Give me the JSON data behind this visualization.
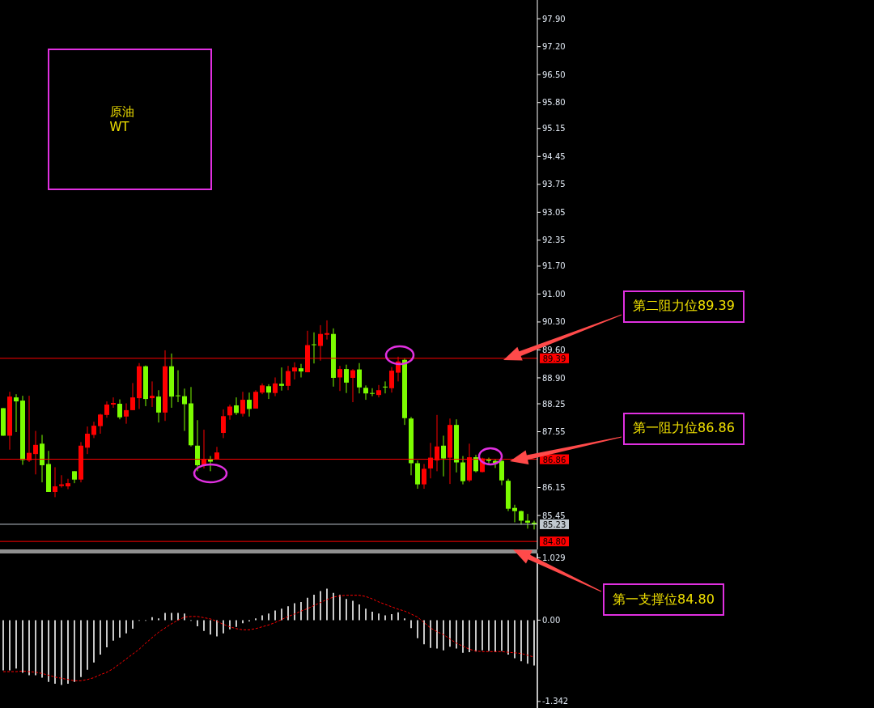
{
  "chart_data": [
    {
      "type": "candlestick",
      "title": "原油\nWT",
      "categories": [
        null,
        null,
        null,
        null,
        null,
        null,
        null,
        null,
        null,
        null,
        null,
        null,
        null,
        null,
        null,
        null,
        null,
        null,
        null,
        null,
        null,
        null,
        null,
        null,
        null,
        null,
        null,
        null,
        null,
        null,
        null,
        null,
        null,
        null,
        null,
        null,
        null,
        null,
        null,
        null,
        null,
        null,
        null,
        null,
        null,
        null,
        null,
        null,
        null,
        null,
        null,
        null,
        null,
        null,
        null,
        null,
        null,
        null,
        null,
        null,
        null,
        null,
        null,
        null,
        null,
        null,
        null,
        null,
        null,
        null,
        null,
        null,
        null,
        null,
        null,
        null,
        null,
        null,
        null,
        null,
        null,
        null,
        null
      ],
      "ohlc": [
        [
          88.14,
          88.14,
          87.45,
          87.45
        ],
        [
          87.45,
          88.55,
          87.1,
          88.43
        ],
        [
          88.41,
          88.49,
          87.54,
          88.31
        ],
        [
          88.33,
          88.45,
          86.72,
          86.84
        ],
        [
          86.83,
          88.45,
          86.79,
          87.02
        ],
        [
          86.99,
          87.57,
          86.48,
          87.22
        ],
        [
          87.25,
          87.47,
          86.28,
          86.71
        ],
        [
          86.74,
          87.07,
          86.04,
          86.04
        ],
        [
          86.04,
          86.66,
          85.91,
          86.18
        ],
        [
          86.19,
          86.46,
          86.15,
          86.23
        ],
        [
          86.18,
          86.37,
          86.11,
          86.26
        ],
        [
          86.56,
          86.56,
          86.26,
          86.35
        ],
        [
          86.35,
          87.29,
          86.28,
          87.2
        ],
        [
          87.15,
          87.68,
          86.99,
          87.5
        ],
        [
          87.47,
          87.8,
          87.39,
          87.7
        ],
        [
          87.69,
          88.0,
          87.5,
          87.98
        ],
        [
          87.97,
          88.31,
          87.9,
          88.23
        ],
        [
          88.23,
          88.41,
          88.15,
          88.27
        ],
        [
          88.25,
          88.36,
          87.86,
          87.91
        ],
        [
          87.93,
          88.26,
          87.75,
          88.09
        ],
        [
          88.09,
          88.77,
          88.09,
          88.41
        ],
        [
          88.39,
          89.27,
          88.12,
          89.19
        ],
        [
          89.19,
          89.21,
          88.19,
          88.37
        ],
        [
          88.39,
          88.81,
          88.17,
          88.45
        ],
        [
          88.43,
          88.59,
          87.78,
          88.03
        ],
        [
          88.03,
          89.59,
          87.82,
          89.19
        ],
        [
          89.19,
          89.51,
          88.15,
          88.43
        ],
        [
          88.46,
          89.09,
          88.29,
          88.45
        ],
        [
          88.44,
          88.63,
          87.57,
          88.24
        ],
        [
          88.26,
          88.67,
          87.18,
          87.21
        ],
        [
          87.2,
          87.84,
          86.56,
          86.71
        ],
        [
          86.71,
          87.6,
          86.63,
          86.86
        ],
        [
          86.86,
          86.94,
          86.56,
          86.8
        ],
        [
          86.85,
          87.17,
          86.85,
          87.03
        ],
        [
          87.52,
          88.11,
          87.39,
          87.94
        ],
        [
          87.96,
          88.23,
          87.85,
          88.18
        ],
        [
          88.21,
          88.41,
          87.97,
          88.02
        ],
        [
          88.0,
          88.55,
          87.93,
          88.35
        ],
        [
          88.35,
          88.53,
          87.93,
          88.12
        ],
        [
          88.13,
          88.59,
          88.13,
          88.55
        ],
        [
          88.53,
          88.76,
          88.49,
          88.71
        ],
        [
          88.69,
          88.74,
          88.37,
          88.53
        ],
        [
          88.52,
          88.91,
          88.44,
          88.76
        ],
        [
          88.75,
          89.16,
          88.58,
          88.7
        ],
        [
          88.7,
          89.2,
          88.59,
          89.07
        ],
        [
          89.06,
          89.29,
          88.86,
          89.16
        ],
        [
          89.14,
          89.25,
          88.91,
          89.06
        ],
        [
          89.04,
          90.08,
          89.04,
          89.72
        ],
        [
          89.74,
          90.04,
          89.26,
          89.73
        ],
        [
          89.7,
          90.22,
          89.33,
          90.0
        ],
        [
          89.98,
          90.34,
          89.86,
          90.02
        ],
        [
          90.0,
          90.14,
          88.68,
          88.9
        ],
        [
          88.91,
          89.2,
          88.57,
          89.12
        ],
        [
          89.12,
          89.23,
          88.52,
          88.78
        ],
        [
          88.9,
          89.12,
          88.29,
          89.09
        ],
        [
          89.11,
          89.27,
          88.51,
          88.66
        ],
        [
          88.65,
          88.71,
          88.35,
          88.51
        ],
        [
          88.52,
          88.64,
          88.44,
          88.51
        ],
        [
          88.47,
          88.72,
          88.41,
          88.59
        ],
        [
          88.68,
          88.81,
          88.51,
          88.67
        ],
        [
          88.64,
          89.17,
          88.53,
          89.08
        ],
        [
          89.03,
          89.43,
          88.81,
          89.31
        ],
        [
          89.35,
          89.39,
          87.72,
          87.89
        ],
        [
          87.88,
          87.92,
          86.46,
          86.76
        ],
        [
          86.76,
          86.83,
          86.12,
          86.23
        ],
        [
          86.23,
          86.74,
          86.12,
          86.62
        ],
        [
          86.63,
          87.27,
          86.38,
          86.9
        ],
        [
          86.83,
          87.97,
          86.56,
          87.18
        ],
        [
          87.2,
          87.45,
          86.43,
          86.88
        ],
        [
          86.9,
          87.88,
          86.24,
          87.72
        ],
        [
          87.72,
          87.86,
          86.53,
          86.78
        ],
        [
          86.78,
          86.94,
          86.23,
          86.31
        ],
        [
          86.33,
          87.25,
          86.29,
          86.91
        ],
        [
          86.91,
          86.97,
          86.53,
          86.56
        ],
        [
          86.54,
          86.9,
          86.53,
          86.88
        ],
        [
          86.86,
          86.9,
          86.75,
          86.82
        ],
        [
          86.82,
          86.86,
          86.64,
          86.76
        ],
        [
          86.82,
          86.86,
          86.21,
          86.33
        ],
        [
          86.32,
          86.37,
          85.56,
          85.62
        ],
        [
          85.64,
          85.72,
          85.28,
          85.56
        ],
        [
          85.56,
          85.57,
          85.22,
          85.32
        ],
        [
          85.32,
          85.49,
          85.12,
          85.27
        ],
        [
          85.27,
          85.32,
          85.1,
          85.23
        ]
      ],
      "colors": [
        "#7cfc00",
        "#ff0000",
        "#7cfc00",
        "#7cfc00",
        "#ff0000",
        "#ff0000",
        "#7cfc00",
        "#7cfc00",
        "#ff0000",
        "#ff0000",
        "#ff0000",
        "#7cfc00",
        "#ff0000",
        "#ff0000",
        "#ff0000",
        "#ff0000",
        "#ff0000",
        "#ff0000",
        "#7cfc00",
        "#ff0000",
        "#ff0000",
        "#ff0000",
        "#7cfc00",
        "#ff0000",
        "#7cfc00",
        "#ff0000",
        "#7cfc00",
        "#7cfc00",
        "#7cfc00",
        "#7cfc00",
        "#7cfc00",
        "#ff0000",
        "#7cfc00",
        "#ff0000",
        "#ff0000",
        "#ff0000",
        "#7cfc00",
        "#ff0000",
        "#7cfc00",
        "#ff0000",
        "#ff0000",
        "#7cfc00",
        "#ff0000",
        "#7cfc00",
        "#ff0000",
        "#ff0000",
        "#7cfc00",
        "#ff0000",
        "#7cfc00",
        "#ff0000",
        "#ff0000",
        "#7cfc00",
        "#ff0000",
        "#7cfc00",
        "#ff0000",
        "#7cfc00",
        "#7cfc00",
        "#7cfc00",
        "#ff0000",
        "#7cfc00",
        "#ff0000",
        "#ff0000",
        "#7cfc00",
        "#7cfc00",
        "#7cfc00",
        "#ff0000",
        "#ff0000",
        "#ff0000",
        "#7cfc00",
        "#ff0000",
        "#7cfc00",
        "#7cfc00",
        "#ff0000",
        "#7cfc00",
        "#ff0000",
        "#7cfc00",
        "#7cfc00",
        "#7cfc00",
        "#7cfc00",
        "#7cfc00",
        "#7cfc00",
        "#7cfc00",
        "#7cfc00"
      ],
      "ylim": [
        84.6,
        98.37
      ],
      "yticks": [
        85.45,
        86.15,
        87.55,
        88.25,
        {
          "value": 88.9,
          "label": "88.90"
        },
        {
          "value": 89.6,
          "label": "89.60"
        },
        {
          "value": 90.3,
          "label": "90.30"
        },
        {
          "value": 91,
          "label": "91.00"
        },
        {
          "value": 91.7,
          "label": "91.70"
        },
        92.35,
        93.05,
        93.75,
        94.45,
        95.15,
        {
          "value": 95.8,
          "label": "95.80"
        },
        {
          "value": 96.5,
          "label": "96.50"
        },
        {
          "value": 97.2,
          "label": "97.20"
        },
        {
          "value": 97.9,
          "label": "97.90"
        }
      ],
      "ref_lines": [
        {
          "axis": "y",
          "value": 89.39,
          "label": "89.39",
          "color": "#ff0000"
        },
        {
          "axis": "y",
          "value": 86.86,
          "label": "86.86",
          "color": "#ff0000"
        },
        {
          "axis": "y",
          "value": 85.23,
          "label": "85.23",
          "color": "#c0c8d0"
        },
        {
          "axis": "y",
          "value": 84.8,
          "label": "84.80",
          "color": "#ff0000"
        }
      ],
      "annotations": [
        "第二阻力位89.39",
        "第一阻力位86.86",
        "第一支撑位84.80"
      ],
      "grid": false,
      "tick_labels": "y"
    },
    {
      "type": "bar",
      "categories": [
        null,
        null,
        null,
        null,
        null,
        null,
        null,
        null,
        null,
        null,
        null,
        null,
        null,
        null,
        null,
        null,
        null,
        null,
        null,
        null,
        null,
        null,
        null,
        null,
        null,
        null,
        null,
        null,
        null,
        null,
        null,
        null,
        null,
        null,
        null,
        null,
        null,
        null,
        null,
        null,
        null,
        null,
        null,
        null,
        null,
        null,
        null,
        null,
        null,
        null,
        null,
        null,
        null,
        null,
        null,
        null,
        null,
        null,
        null,
        null,
        null,
        null,
        null,
        null,
        null,
        null,
        null,
        null,
        null,
        null,
        null,
        null,
        null,
        null,
        null,
        null,
        null,
        null,
        null,
        null,
        null,
        null,
        null
      ],
      "series": [
        {
          "type": "bar",
          "color": "#c8c8c8",
          "values": [
            -0.83,
            -0.83,
            -0.8,
            -0.87,
            -0.91,
            -0.91,
            -0.95,
            -1.02,
            -1.05,
            -1.07,
            -1.05,
            -1.02,
            -0.94,
            -0.82,
            -0.7,
            -0.57,
            -0.45,
            -0.34,
            -0.29,
            -0.22,
            -0.14,
            -0.01,
            -0.01,
            0.05,
            0.03,
            0.12,
            0.12,
            0.12,
            0.11,
            -0.01,
            -0.1,
            -0.18,
            -0.24,
            -0.27,
            -0.22,
            -0.15,
            -0.11,
            -0.05,
            -0.02,
            0.03,
            0.08,
            0.11,
            0.16,
            0.19,
            0.23,
            0.28,
            0.3,
            0.37,
            0.42,
            0.48,
            0.52,
            0.45,
            0.42,
            0.35,
            0.32,
            0.26,
            0.19,
            0.14,
            0.11,
            0.08,
            0.1,
            0.13,
            0.03,
            -0.13,
            -0.3,
            -0.4,
            -0.46,
            -0.47,
            -0.5,
            -0.44,
            -0.47,
            -0.54,
            -0.53,
            -0.52,
            -0.5,
            -0.51,
            -0.53,
            -0.51,
            -0.57,
            -0.63,
            -0.68,
            -0.72,
            -0.75
          ]
        }
      ],
      "ylim": [
        -1.45,
        1.1
      ],
      "yticks": [
        1.029,
        {
          "value": 0,
          "label": "0.00"
        },
        -1.342
      ],
      "grid": false,
      "tick_labels": "y"
    },
    {
      "type": "line",
      "categories": [
        null,
        null,
        null,
        null,
        null,
        null,
        null,
        null,
        null,
        null,
        null,
        null,
        null,
        null,
        null,
        null,
        null,
        null,
        null,
        null,
        null,
        null,
        null,
        null,
        null,
        null,
        null,
        null,
        null,
        null,
        null,
        null,
        null,
        null,
        null,
        null,
        null,
        null,
        null,
        null,
        null,
        null,
        null,
        null,
        null,
        null,
        null,
        null,
        null,
        null,
        null,
        null,
        null,
        null,
        null,
        null,
        null,
        null,
        null,
        null,
        null,
        null,
        null,
        null,
        null,
        null,
        null,
        null,
        null,
        null,
        null,
        null,
        null,
        null,
        null,
        null,
        null,
        null,
        null,
        null,
        null,
        null,
        null
      ],
      "series": [
        {
          "type": "line",
          "color": "#ff0000",
          "line_style": "dashed",
          "values": [
            -0.85,
            -0.85,
            -0.85,
            -0.84,
            -0.85,
            -0.86,
            -0.88,
            -0.91,
            -0.94,
            -0.96,
            -0.98,
            -1.0,
            -1.0,
            -0.98,
            -0.95,
            -0.9,
            -0.86,
            -0.8,
            -0.72,
            -0.64,
            -0.56,
            -0.48,
            -0.38,
            -0.29,
            -0.2,
            -0.13,
            -0.06,
            0.0,
            0.05,
            0.06,
            0.06,
            0.04,
            0.02,
            -0.02,
            -0.07,
            -0.11,
            -0.14,
            -0.16,
            -0.16,
            -0.14,
            -0.11,
            -0.08,
            -0.04,
            0.01,
            0.06,
            0.1,
            0.15,
            0.19,
            0.24,
            0.29,
            0.34,
            0.38,
            0.4,
            0.41,
            0.41,
            0.41,
            0.39,
            0.35,
            0.3,
            0.26,
            0.22,
            0.18,
            0.15,
            0.1,
            0.05,
            -0.04,
            -0.13,
            -0.19,
            -0.24,
            -0.31,
            -0.38,
            -0.43,
            -0.48,
            -0.51,
            -0.52,
            -0.52,
            -0.52,
            -0.52,
            -0.53,
            -0.54,
            -0.55,
            -0.58,
            -0.61
          ]
        }
      ],
      "ylim": [
        -1.45,
        1.1
      ],
      "tick_labels": false
    }
  ]
}
